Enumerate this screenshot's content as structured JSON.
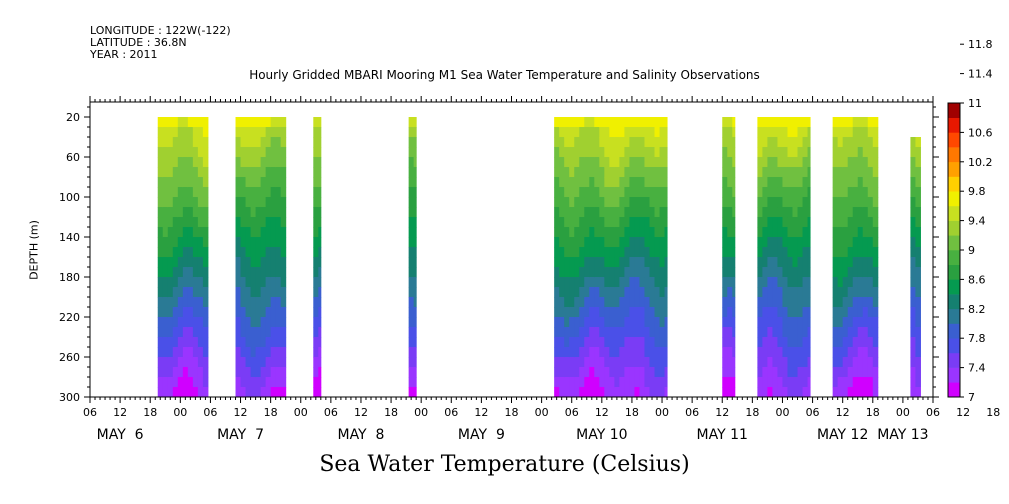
{
  "header": {
    "longitude": "LONGITUDE : 122W(-122)",
    "latitude": "LATITUDE : 36.8N",
    "year": "YEAR : 2011"
  },
  "chart_data": {
    "type": "heatmap",
    "title": "Hourly Gridded MBARI Mooring M1 Sea Water Temperature and Salinity Observations",
    "xlabel": "Sea Water Temperature (Celsius)",
    "ylabel": "DEPTH (m)",
    "y_ticks": [
      20,
      60,
      100,
      140,
      180,
      220,
      260,
      300
    ],
    "ylim": [
      300,
      5
    ],
    "x_hour_ticks": [
      "06",
      "12",
      "18",
      "00",
      "06",
      "12",
      "18",
      "00",
      "06",
      "12",
      "18",
      "00",
      "06",
      "12",
      "18",
      "00",
      "06",
      "12",
      "18",
      "00",
      "06",
      "12",
      "18",
      "00",
      "06",
      "12",
      "18",
      "00",
      "06",
      "12",
      "18",
      "00",
      "06"
    ],
    "day_labels": [
      "MAY  6",
      "MAY  7",
      "MAY  8",
      "MAY  9",
      "MAY 10",
      "MAY 11",
      "MAY 12",
      "MAY 13"
    ],
    "xlim_hours_from_may6_00": [
      6,
      174
    ],
    "colorbar": {
      "levels": [
        "7",
        "7.4",
        "7.8",
        "8.2",
        "8.6",
        "9",
        "9.4",
        "9.8",
        "10.2",
        "10.6",
        "11",
        "11.4",
        "11.8"
      ],
      "colors": [
        "#d000ff",
        "#9a35ff",
        "#7a3cf5",
        "#4a50e8",
        "#3a5fd0",
        "#2a7a95",
        "#158070",
        "#059a50",
        "#2aa040",
        "#48b040",
        "#70c040",
        "#a0d030",
        "#c8e020",
        "#f0f000",
        "#ffd000",
        "#ffa000",
        "#ff7800",
        "#ff4800",
        "#e81800",
        "#a00000"
      ]
    },
    "observation_segments": [
      {
        "start_hour": 19.5,
        "end_hour": 29.5,
        "top_depth": 20
      },
      {
        "start_hour": 35,
        "end_hour": 45,
        "top_depth": 20
      },
      {
        "start_hour": 50.5,
        "end_hour": 52,
        "top_depth": 20
      },
      {
        "start_hour": 69.5,
        "end_hour": 71,
        "top_depth": 20
      },
      {
        "start_hour": 98.5,
        "end_hour": 121,
        "top_depth": 20
      },
      {
        "start_hour": 132,
        "end_hour": 134.5,
        "top_depth": 20
      },
      {
        "start_hour": 139,
        "end_hour": 149.5,
        "top_depth": 20
      },
      {
        "start_hour": 154,
        "end_hour": 163,
        "top_depth": 20
      },
      {
        "start_hour": 169.5,
        "end_hour": 171.5,
        "top_depth": 40
      }
    ]
  }
}
